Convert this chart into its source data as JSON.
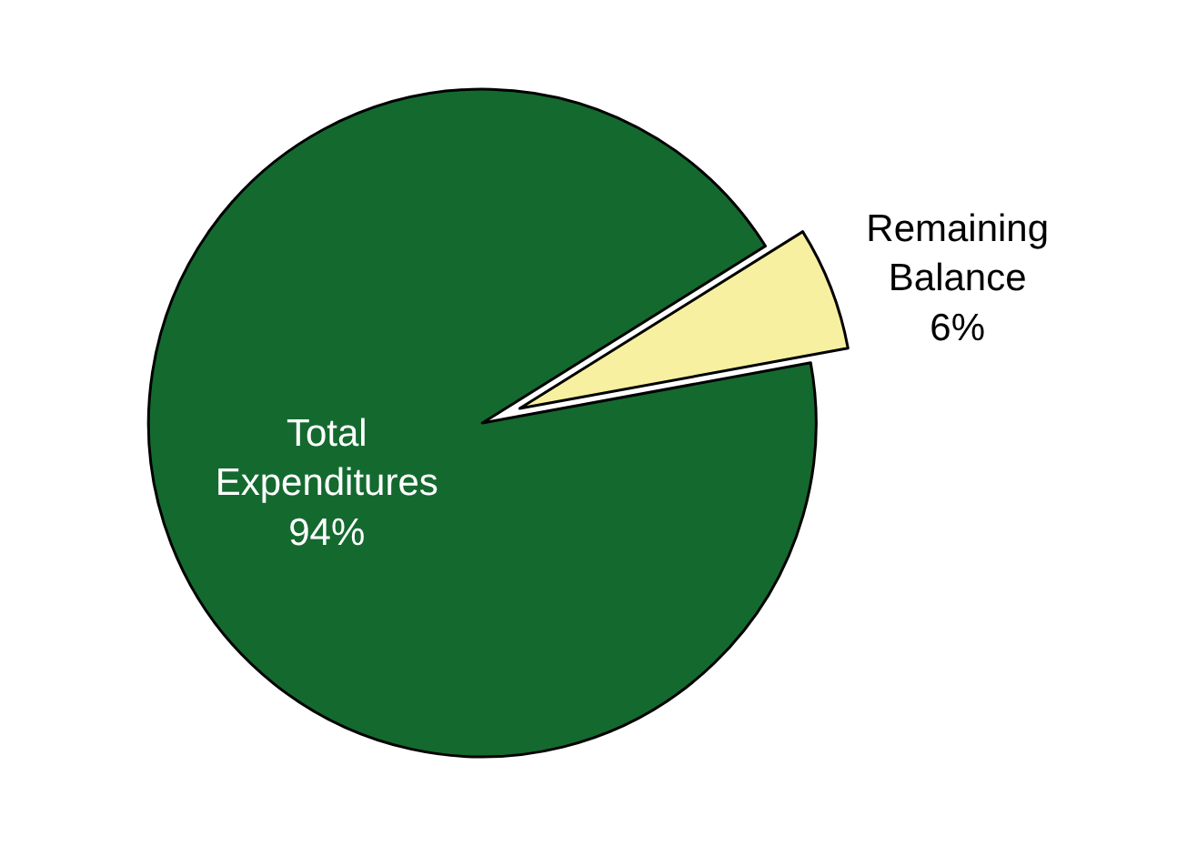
{
  "chart_data": {
    "type": "pie",
    "categories": [
      "Remaining Balance",
      "Total Expenditures"
    ],
    "values": [
      6,
      94
    ],
    "value_labels": [
      "6%",
      "94%"
    ],
    "colors": [
      "#f6f0a0",
      "#14692f"
    ]
  }
}
